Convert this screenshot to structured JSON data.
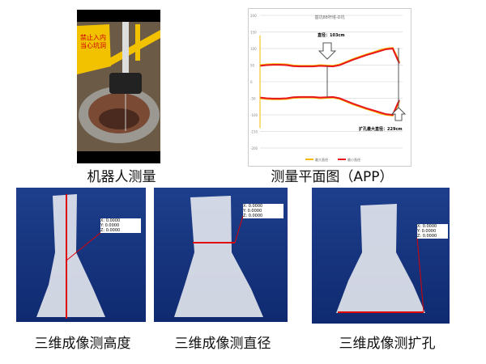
{
  "captions": {
    "robot": "机器人测量",
    "app": "测量平面图（APP）",
    "height": "三维成像测高度",
    "diameter": "三维成像测直径",
    "reaming": "三维成像测扩孔"
  },
  "photo": {
    "sign_text": "禁止入内 当心坑洞"
  },
  "chart_data": {
    "type": "line",
    "title": "基坑88杆塔-D坑",
    "ylim": [
      -200,
      200
    ],
    "yticks": [
      200,
      150,
      100,
      50,
      0,
      -50,
      -100,
      -150,
      -200
    ],
    "grid": true,
    "legend_position": "bottom",
    "series": [
      {
        "name": "最大直径",
        "color": "#f5b800",
        "upper": [
          50,
          52,
          53,
          53,
          52,
          49,
          48,
          48,
          48,
          50,
          49,
          48,
          52,
          60,
          68,
          75,
          82,
          88,
          95,
          100,
          102,
          60
        ],
        "lower": [
          -50,
          -52,
          -53,
          -53,
          -52,
          -49,
          -48,
          -48,
          -48,
          -50,
          -49,
          -48,
          -52,
          -60,
          -68,
          -75,
          -82,
          -88,
          -95,
          -100,
          -102,
          -60
        ]
      },
      {
        "name": "最小直径",
        "color": "#e8151b",
        "upper": [
          48,
          50,
          51,
          51,
          50,
          47,
          46,
          46,
          46,
          48,
          47,
          46,
          50,
          58,
          66,
          73,
          80,
          86,
          92,
          98,
          100,
          55
        ],
        "lower": [
          -48,
          -50,
          -51,
          -51,
          -50,
          -47,
          -46,
          -46,
          -46,
          -48,
          -47,
          -46,
          -50,
          -58,
          -66,
          -73,
          -80,
          -86,
          -92,
          -98,
          -100,
          -55
        ]
      }
    ],
    "annotations": [
      "直径：103cm",
      "扩孔最大直径：229cm"
    ]
  },
  "panels": [
    {
      "legend": [
        "X: 0.0000",
        "Y: 0.0000",
        "Z: 0.0000"
      ]
    },
    {
      "legend": [
        "X: 0.0000",
        "Y: 0.0000",
        "Z: 0.0000"
      ]
    },
    {
      "legend": [
        "X: 0.0000",
        "Y: 0.0000",
        "Z: 0.0000"
      ]
    }
  ]
}
